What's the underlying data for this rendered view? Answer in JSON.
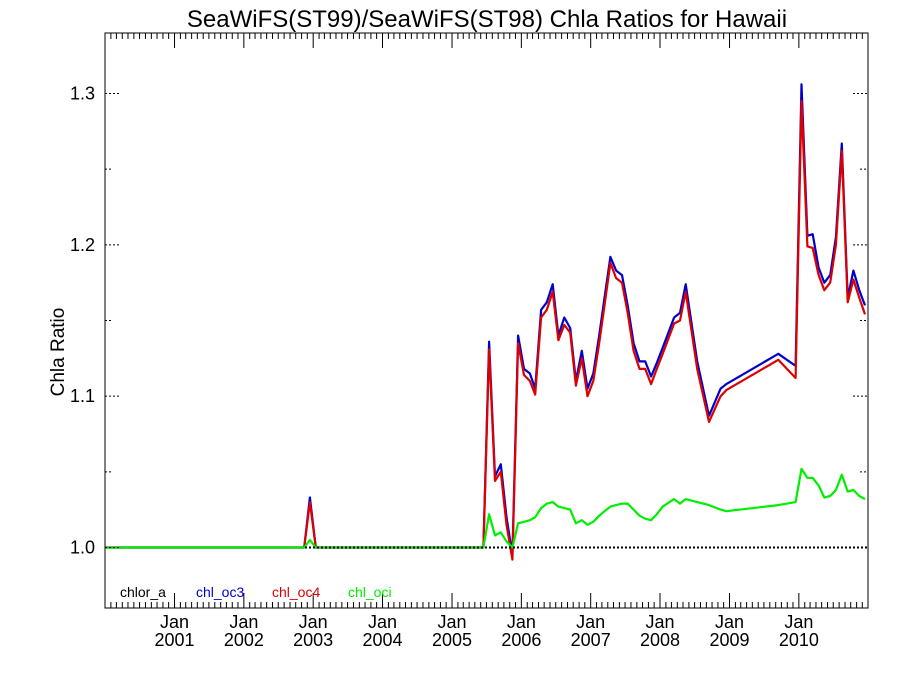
{
  "chart_data": {
    "type": "line",
    "title": "SeaWiFS(ST99)/SeaWiFS(ST98)  Chla Ratios for Hawaii",
    "xlabel": "",
    "ylabel": "Chla Ratio",
    "xlim": [
      "2000-01-01",
      "2010-12-31"
    ],
    "ylim": [
      0.96,
      1.34
    ],
    "grid": false,
    "legend_placement": "bottom-left",
    "x_ticks": [
      {
        "date": "2001-01-01",
        "line1": "Jan",
        "line2": "2001"
      },
      {
        "date": "2002-01-01",
        "line1": "Jan",
        "line2": "2002"
      },
      {
        "date": "2003-01-01",
        "line1": "Jan",
        "line2": "2003"
      },
      {
        "date": "2004-01-01",
        "line1": "Jan",
        "line2": "2004"
      },
      {
        "date": "2005-01-01",
        "line1": "Jan",
        "line2": "2005"
      },
      {
        "date": "2006-01-01",
        "line1": "Jan",
        "line2": "2006"
      },
      {
        "date": "2007-01-01",
        "line1": "Jan",
        "line2": "2007"
      },
      {
        "date": "2008-01-01",
        "line1": "Jan",
        "line2": "2008"
      },
      {
        "date": "2009-01-01",
        "line1": "Jan",
        "line2": "2009"
      },
      {
        "date": "2010-01-01",
        "line1": "Jan",
        "line2": "2010"
      }
    ],
    "y_ticks": [
      {
        "value": 1.0,
        "label": "1.0"
      },
      {
        "value": 1.1,
        "label": "1.1"
      },
      {
        "value": 1.2,
        "label": "1.2"
      },
      {
        "value": 1.3,
        "label": "1.3"
      }
    ],
    "y_minor_ticks": [
      1.05,
      1.15,
      1.25
    ],
    "reference_line": {
      "value": 1.0,
      "style": "dotted",
      "color": "#000000"
    },
    "series": [
      {
        "name": "chlor_a",
        "color": "#000000",
        "x": [
          "2000-01-01",
          "2010-12-31"
        ],
        "y": [
          1.0,
          1.0
        ]
      },
      {
        "name": "chl_oc3",
        "color": "#0000cc",
        "x": [
          "2000-01-01",
          "2002-11-15",
          "2002-12-15",
          "2003-01-15",
          "2005-06-15",
          "2005-07-15",
          "2005-08-15",
          "2005-09-15",
          "2005-10-15",
          "2005-11-15",
          "2005-12-15",
          "2006-01-15",
          "2006-02-15",
          "2006-03-15",
          "2006-04-15",
          "2006-05-15",
          "2006-06-15",
          "2006-07-15",
          "2006-08-15",
          "2006-09-15",
          "2006-10-15",
          "2006-11-15",
          "2006-12-15",
          "2007-01-15",
          "2007-02-15",
          "2007-03-15",
          "2007-04-15",
          "2007-05-15",
          "2007-06-15",
          "2007-07-15",
          "2007-08-15",
          "2007-09-15",
          "2007-10-15",
          "2007-11-15",
          "2007-12-15",
          "2008-01-15",
          "2008-03-15",
          "2008-04-15",
          "2008-05-15",
          "2008-07-15",
          "2008-09-15",
          "2008-11-15",
          "2008-12-15",
          "2009-09-15",
          "2009-12-15",
          "2010-01-15",
          "2010-02-15",
          "2010-03-15",
          "2010-04-15",
          "2010-05-15",
          "2010-06-15",
          "2010-07-15",
          "2010-08-15",
          "2010-09-15",
          "2010-10-15",
          "2010-11-15",
          "2010-12-15"
        ],
        "y": [
          1.0,
          1.0,
          1.033,
          1.0,
          1.0,
          1.136,
          1.047,
          1.055,
          1.02,
          0.995,
          1.14,
          1.118,
          1.115,
          1.105,
          1.157,
          1.162,
          1.174,
          1.14,
          1.152,
          1.145,
          1.11,
          1.13,
          1.105,
          1.115,
          1.14,
          1.165,
          1.192,
          1.183,
          1.18,
          1.16,
          1.135,
          1.123,
          1.123,
          1.113,
          1.122,
          1.132,
          1.152,
          1.155,
          1.174,
          1.123,
          1.087,
          1.105,
          1.108,
          1.128,
          1.12,
          1.306,
          1.206,
          1.207,
          1.185,
          1.175,
          1.18,
          1.205,
          1.267,
          1.165,
          1.183,
          1.17,
          1.16
        ]
      },
      {
        "name": "chl_oc4",
        "color": "#dd0000",
        "x": [
          "2000-01-01",
          "2002-11-15",
          "2002-12-15",
          "2003-01-15",
          "2005-06-15",
          "2005-07-15",
          "2005-08-15",
          "2005-09-15",
          "2005-10-15",
          "2005-11-15",
          "2005-12-15",
          "2006-01-15",
          "2006-02-15",
          "2006-03-15",
          "2006-04-15",
          "2006-05-15",
          "2006-06-15",
          "2006-07-15",
          "2006-08-15",
          "2006-09-15",
          "2006-10-15",
          "2006-11-15",
          "2006-12-15",
          "2007-01-15",
          "2007-02-15",
          "2007-03-15",
          "2007-04-15",
          "2007-05-15",
          "2007-06-15",
          "2007-07-15",
          "2007-08-15",
          "2007-09-15",
          "2007-10-15",
          "2007-11-15",
          "2007-12-15",
          "2008-01-15",
          "2008-03-15",
          "2008-04-15",
          "2008-05-15",
          "2008-07-15",
          "2008-09-15",
          "2008-11-15",
          "2008-12-15",
          "2009-09-15",
          "2009-12-15",
          "2010-01-15",
          "2010-02-15",
          "2010-03-15",
          "2010-04-15",
          "2010-05-15",
          "2010-06-15",
          "2010-07-15",
          "2010-08-15",
          "2010-09-15",
          "2010-10-15",
          "2010-11-15",
          "2010-12-15"
        ],
        "y": [
          1.0,
          1.0,
          1.03,
          1.0,
          1.0,
          1.131,
          1.044,
          1.05,
          1.015,
          0.992,
          1.135,
          1.114,
          1.11,
          1.101,
          1.152,
          1.157,
          1.169,
          1.137,
          1.147,
          1.142,
          1.107,
          1.125,
          1.1,
          1.11,
          1.135,
          1.16,
          1.188,
          1.178,
          1.175,
          1.155,
          1.13,
          1.118,
          1.118,
          1.108,
          1.118,
          1.128,
          1.148,
          1.15,
          1.169,
          1.118,
          1.083,
          1.1,
          1.104,
          1.124,
          1.112,
          1.295,
          1.199,
          1.198,
          1.18,
          1.17,
          1.175,
          1.2,
          1.262,
          1.162,
          1.177,
          1.165,
          1.154
        ]
      },
      {
        "name": "chl_oci",
        "color": "#00ee00",
        "x": [
          "2000-01-01",
          "2002-11-15",
          "2002-12-15",
          "2003-01-15",
          "2005-06-15",
          "2005-07-15",
          "2005-08-15",
          "2005-09-15",
          "2005-10-15",
          "2005-11-15",
          "2005-12-15",
          "2006-01-15",
          "2006-02-15",
          "2006-03-15",
          "2006-04-15",
          "2006-05-15",
          "2006-06-15",
          "2006-07-15",
          "2006-08-15",
          "2006-09-15",
          "2006-10-15",
          "2006-11-15",
          "2006-12-15",
          "2007-01-15",
          "2007-02-15",
          "2007-03-15",
          "2007-04-15",
          "2007-05-15",
          "2007-06-15",
          "2007-07-15",
          "2007-08-15",
          "2007-09-15",
          "2007-10-15",
          "2007-11-15",
          "2007-12-15",
          "2008-01-15",
          "2008-03-15",
          "2008-04-15",
          "2008-05-15",
          "2008-07-15",
          "2008-09-15",
          "2008-11-15",
          "2008-12-15",
          "2009-09-15",
          "2009-12-15",
          "2010-01-15",
          "2010-02-15",
          "2010-03-15",
          "2010-04-15",
          "2010-05-15",
          "2010-06-15",
          "2010-07-15",
          "2010-08-15",
          "2010-09-15",
          "2010-10-15",
          "2010-11-15",
          "2010-12-15"
        ],
        "y": [
          1.0,
          1.0,
          1.005,
          1.0,
          1.0,
          1.022,
          1.008,
          1.01,
          1.004,
          1.0,
          1.016,
          1.017,
          1.018,
          1.02,
          1.026,
          1.029,
          1.03,
          1.027,
          1.026,
          1.025,
          1.016,
          1.018,
          1.015,
          1.017,
          1.021,
          1.024,
          1.027,
          1.028,
          1.029,
          1.029,
          1.025,
          1.021,
          1.019,
          1.018,
          1.022,
          1.027,
          1.032,
          1.029,
          1.032,
          1.03,
          1.028,
          1.025,
          1.024,
          1.028,
          1.03,
          1.052,
          1.046,
          1.046,
          1.041,
          1.033,
          1.034,
          1.038,
          1.048,
          1.037,
          1.038,
          1.034,
          1.032
        ]
      }
    ]
  }
}
